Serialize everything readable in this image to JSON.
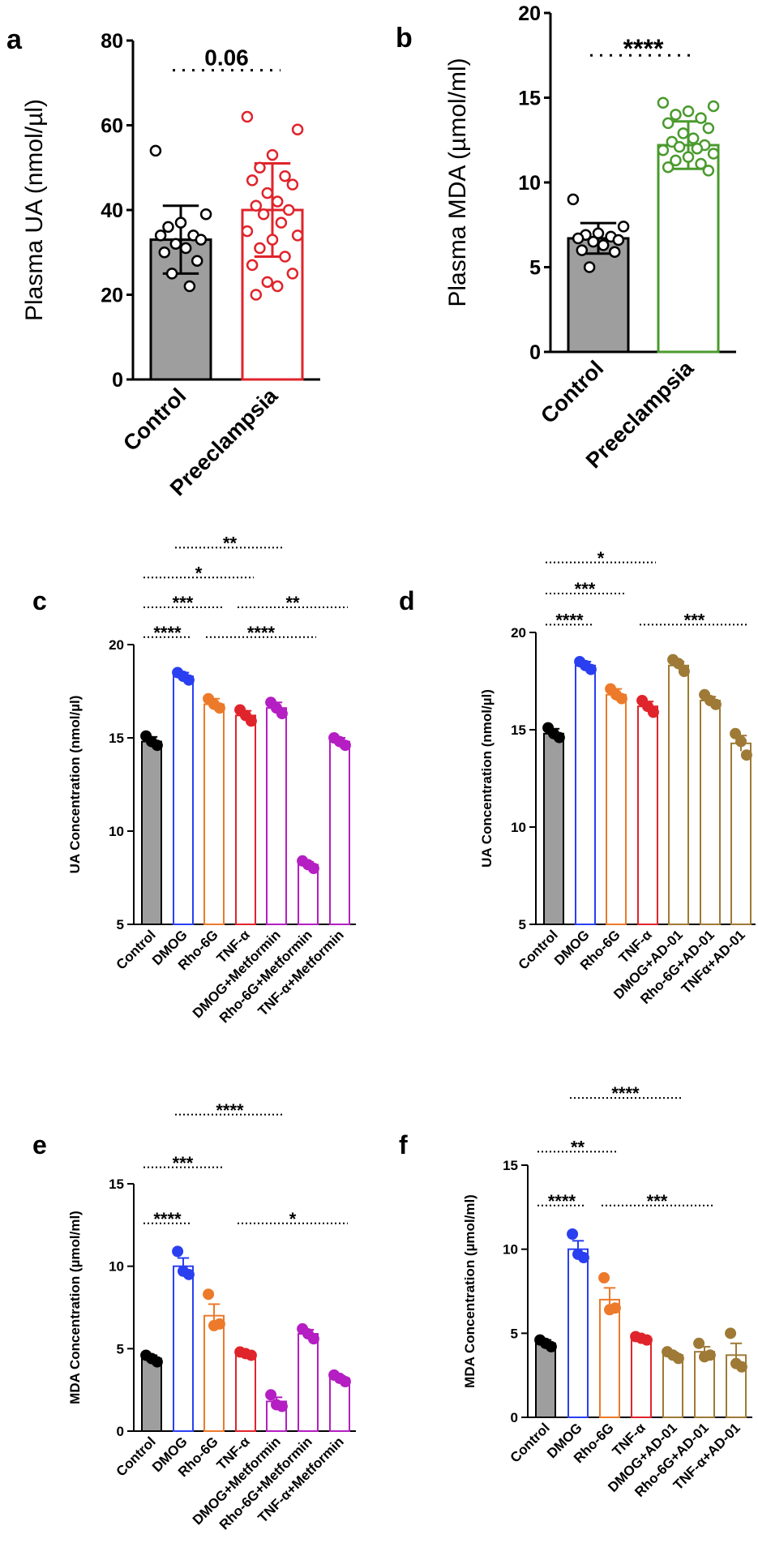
{
  "figure": {
    "colors": {
      "black": "#000000",
      "gray": "#9e9e9e",
      "red": "#e0242b",
      "green": "#4a9a2e",
      "blue": "#2a3ff0",
      "orange": "#ec7a2a",
      "magenta": "#b41ec2",
      "brown": "#9e7a36"
    }
  },
  "chart_data": [
    {
      "id": "a",
      "type": "bar",
      "panel_label": "a",
      "ylabel": "Plasma UA (nmol/µl)",
      "ylim": [
        0,
        80
      ],
      "yticks": [
        0,
        20,
        40,
        60,
        80
      ],
      "categories": [
        "Control",
        "Preeclampsia"
      ],
      "series": [
        {
          "name": "Plasma UA",
          "values": [
            33,
            40
          ],
          "sd": [
            8,
            11
          ],
          "fills": [
            "gray",
            "none"
          ],
          "colors": [
            "black",
            "red"
          ],
          "points": [
            [
              54,
              39,
              37,
              36,
              34,
              34,
              33,
              32,
              31,
              30,
              28,
              25,
              22
            ],
            [
              62,
              59,
              53,
              50,
              48,
              47,
              46,
              44,
              42,
              41,
              40,
              39,
              37,
              35,
              34,
              33,
              31,
              29,
              27,
              25,
              23,
              22,
              20
            ]
          ]
        }
      ],
      "annotations": [
        {
          "text": "0.06",
          "from": 0,
          "to": 1,
          "y": 73
        }
      ]
    },
    {
      "id": "b",
      "type": "bar",
      "panel_label": "b",
      "ylabel": "Plasma MDA (µmol/ml)",
      "ylim": [
        0,
        20
      ],
      "yticks": [
        0,
        5,
        10,
        15,
        20
      ],
      "categories": [
        "Control",
        "Preeclampsia"
      ],
      "series": [
        {
          "name": "Plasma MDA",
          "values": [
            6.7,
            12.2
          ],
          "sd": [
            0.9,
            1.4
          ],
          "fills": [
            "gray",
            "none"
          ],
          "colors": [
            "black",
            "green"
          ],
          "points": [
            [
              9.0,
              7.4,
              7.0,
              6.9,
              6.8,
              6.7,
              6.6,
              6.5,
              6.3,
              6.0,
              5.9,
              5.0
            ],
            [
              14.7,
              14.5,
              14.2,
              14.0,
              13.8,
              13.5,
              13.2,
              12.9,
              12.6,
              12.4,
              12.2,
              12.1,
              12.0,
              11.9,
              11.7,
              11.5,
              11.3,
              11.1,
              10.9,
              10.7
            ]
          ]
        }
      ],
      "annotations": [
        {
          "text": "****",
          "from": 0,
          "to": 1,
          "y": 17.5
        }
      ]
    },
    {
      "id": "c",
      "type": "bar",
      "panel_label": "c",
      "ylabel": "UA Concentration (nmol/µl)",
      "ylim": [
        5,
        20
      ],
      "yticks": [
        5,
        10,
        15,
        20
      ],
      "categories": [
        "Control",
        "DMOG",
        "Rho-6G",
        "TNF-α",
        "DMOG+Metformin",
        "Rho-6G+Metformin",
        "TNF-α+Metformin"
      ],
      "series": [
        {
          "name": "UA",
          "values": [
            14.8,
            18.3,
            16.8,
            16.2,
            16.6,
            8.2,
            14.8
          ],
          "sem": [
            0.25,
            0.2,
            0.3,
            0.25,
            0.3,
            0.15,
            0.2
          ],
          "fills": [
            "gray",
            "none",
            "none",
            "none",
            "none",
            "none",
            "none"
          ],
          "colors": [
            "black",
            "blue",
            "orange",
            "red",
            "magenta",
            "magenta",
            "magenta"
          ],
          "points": [
            [
              15.1,
              14.6,
              14.8
            ],
            [
              18.5,
              18.1,
              18.3
            ],
            [
              17.1,
              16.6,
              16.8
            ],
            [
              16.5,
              15.9,
              16.2
            ],
            [
              16.9,
              16.3,
              16.6
            ],
            [
              8.4,
              8.0,
              8.2
            ],
            [
              15.0,
              14.6,
              14.8
            ]
          ]
        }
      ],
      "annotations": [
        {
          "text": "****",
          "from": 0,
          "to": 1,
          "y": 20.4
        },
        {
          "text": "****",
          "from": 2,
          "to": 5,
          "y": 20.4
        },
        {
          "text": "***",
          "from": 0,
          "to": 2,
          "y": 22.0
        },
        {
          "text": "**",
          "from": 3,
          "to": 6,
          "y": 22.0
        },
        {
          "text": "*",
          "from": 0,
          "to": 3,
          "y": 23.6
        },
        {
          "text": "**",
          "from": 1,
          "to": 4,
          "y": 25.2
        }
      ]
    },
    {
      "id": "d",
      "type": "bar",
      "panel_label": "d",
      "ylabel": "UA Concentration (nmol/µl)",
      "ylim": [
        5,
        20
      ],
      "yticks": [
        5,
        10,
        15,
        20
      ],
      "categories": [
        "Control",
        "DMOG",
        "Rho-6G",
        "TNF-α",
        "DMOG+AD-01",
        "Rho-6G+AD-01",
        "TNFα+AD-01"
      ],
      "series": [
        {
          "name": "UA",
          "values": [
            14.8,
            18.3,
            16.8,
            16.2,
            18.3,
            16.5,
            14.3
          ],
          "sem": [
            0.25,
            0.2,
            0.3,
            0.25,
            0.2,
            0.2,
            0.4
          ],
          "fills": [
            "gray",
            "none",
            "none",
            "none",
            "none",
            "none",
            "none"
          ],
          "colors": [
            "black",
            "blue",
            "orange",
            "red",
            "brown",
            "brown",
            "brown"
          ],
          "points": [
            [
              15.1,
              14.6,
              14.8
            ],
            [
              18.5,
              18.1,
              18.3
            ],
            [
              17.1,
              16.6,
              16.8
            ],
            [
              16.5,
              15.9,
              16.2
            ],
            [
              18.6,
              18.0,
              18.4
            ],
            [
              16.8,
              16.3,
              16.5
            ],
            [
              14.8,
              13.7,
              14.4
            ]
          ]
        }
      ],
      "annotations": [
        {
          "text": "****",
          "from": 0,
          "to": 1,
          "y": 20.4
        },
        {
          "text": "***",
          "from": 3,
          "to": 6,
          "y": 20.4
        },
        {
          "text": "***",
          "from": 0,
          "to": 2,
          "y": 22.0
        },
        {
          "text": "*",
          "from": 0,
          "to": 3,
          "y": 23.6
        }
      ]
    },
    {
      "id": "e",
      "type": "bar",
      "panel_label": "e",
      "ylabel": "MDA Concentration (µmol/ml)",
      "ylim": [
        0,
        15
      ],
      "yticks": [
        0,
        5,
        10,
        15
      ],
      "categories": [
        "Control",
        "DMOG",
        "Rho-6G",
        "TNF-α",
        "DMOG+Metformin",
        "Rho-6G+Metformin",
        "TNF-α+Metformin"
      ],
      "series": [
        {
          "name": "MDA",
          "values": [
            4.4,
            10.0,
            7.0,
            4.7,
            1.8,
            5.9,
            3.2
          ],
          "sem": [
            0.2,
            0.5,
            0.7,
            0.15,
            0.25,
            0.25,
            0.15
          ],
          "fills": [
            "gray",
            "none",
            "none",
            "none",
            "none",
            "none",
            "none"
          ],
          "colors": [
            "black",
            "blue",
            "orange",
            "red",
            "magenta",
            "magenta",
            "magenta"
          ],
          "points": [
            [
              4.6,
              4.2,
              4.4
            ],
            [
              10.9,
              9.5,
              9.7
            ],
            [
              8.3,
              6.5,
              6.4
            ],
            [
              4.8,
              4.6,
              4.7
            ],
            [
              2.2,
              1.5,
              1.6
            ],
            [
              6.2,
              5.6,
              5.9
            ],
            [
              3.4,
              3.0,
              3.2
            ]
          ]
        }
      ],
      "annotations": [
        {
          "text": "****",
          "from": 0,
          "to": 1,
          "y": 12.6
        },
        {
          "text": "*",
          "from": 3,
          "to": 6,
          "y": 12.6
        },
        {
          "text": "***",
          "from": 0,
          "to": 2,
          "y": 16.0
        },
        {
          "text": "****",
          "from": 1,
          "to": 4,
          "y": 19.2
        }
      ]
    },
    {
      "id": "f",
      "type": "bar",
      "panel_label": "f",
      "ylabel": "MDA Concentration (µmol/ml)",
      "ylim": [
        0,
        15
      ],
      "yticks": [
        0,
        5,
        10,
        15
      ],
      "categories": [
        "Control",
        "DMOG",
        "Rho-6G",
        "TNF-α",
        "DMOG+AD-01",
        "Rho-6G+AD-01",
        "TNF-α+AD-01"
      ],
      "series": [
        {
          "name": "MDA",
          "values": [
            4.4,
            10.0,
            7.0,
            4.7,
            3.7,
            3.9,
            3.7
          ],
          "sem": [
            0.2,
            0.5,
            0.7,
            0.15,
            0.15,
            0.3,
            0.7
          ],
          "fills": [
            "gray",
            "none",
            "none",
            "none",
            "none",
            "none",
            "none"
          ],
          "colors": [
            "black",
            "blue",
            "orange",
            "red",
            "brown",
            "brown",
            "brown"
          ],
          "points": [
            [
              4.6,
              4.2,
              4.4
            ],
            [
              10.9,
              9.5,
              9.7
            ],
            [
              8.3,
              6.5,
              6.4
            ],
            [
              4.8,
              4.6,
              4.7
            ],
            [
              3.9,
              3.5,
              3.7
            ],
            [
              4.4,
              3.7,
              3.6
            ],
            [
              5.0,
              3.0,
              3.2
            ]
          ]
        }
      ],
      "annotations": [
        {
          "text": "****",
          "from": 0,
          "to": 1,
          "y": 12.6
        },
        {
          "text": "***",
          "from": 2,
          "to": 5,
          "y": 12.6
        },
        {
          "text": "**",
          "from": 0,
          "to": 2,
          "y": 15.8
        },
        {
          "text": "****",
          "from": 1,
          "to": 4,
          "y": 19.0
        }
      ]
    }
  ]
}
